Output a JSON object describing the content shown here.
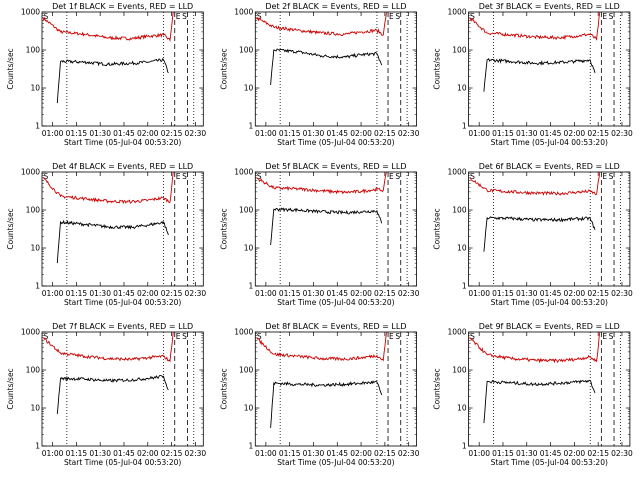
{
  "figure": {
    "background": "#ffffff",
    "colors": {
      "events": "#000000",
      "lld": "#cc0000",
      "axes": "#000000"
    }
  },
  "chart_data": [
    {
      "type": "line",
      "title": "Det 1f BLACK = Events, RED = LLD",
      "ylabel": "Counts/sec",
      "xlabel": "Start Time (05-Jul-04 00:53:20)",
      "xticks": [
        "01:00",
        "01:15",
        "01:30",
        "01:45",
        "02:00",
        "02:15",
        "02:30"
      ],
      "yticks": [
        "1",
        "10",
        "100",
        "1000"
      ],
      "yscale": "log",
      "ylim": [
        1,
        1000
      ],
      "xlim": [
        "00:53:20",
        "02:35"
      ],
      "markers": [
        {
          "label": "S",
          "time": "00:53:40"
        },
        {
          "label": "E",
          "time": "02:17"
        },
        {
          "label": "S",
          "time": "02:21"
        }
      ],
      "vlines": [
        {
          "time": "01:09",
          "style": "dotted"
        },
        {
          "time": "02:10",
          "style": "dotted"
        },
        {
          "time": "02:17",
          "style": "dashed"
        },
        {
          "time": "02:25",
          "style": "dashed"
        },
        {
          "time": "02:29",
          "style": "dotted"
        }
      ],
      "series": [
        {
          "name": "LLD",
          "color": "#cc0000",
          "x": [
            "00:54",
            "01:05",
            "01:20",
            "01:35",
            "01:50",
            "02:00",
            "02:10",
            "02:14",
            "02:16"
          ],
          "y": [
            700,
            300,
            260,
            210,
            200,
            230,
            250,
            180,
            1000
          ]
        },
        {
          "name": "Events",
          "color": "#000000",
          "x": [
            "01:03",
            "01:05",
            "01:20",
            "01:35",
            "01:50",
            "02:00",
            "02:10",
            "02:13"
          ],
          "y": [
            4,
            50,
            48,
            42,
            45,
            48,
            55,
            25
          ]
        }
      ]
    },
    {
      "type": "line",
      "title": "Det 2f BLACK = Events, RED = LLD",
      "ylabel": "Counts/sec",
      "xlabel": "Start Time (05-Jul-04 00:53:20)",
      "xticks": [
        "01:00",
        "01:15",
        "01:30",
        "01:45",
        "02:00",
        "02:15",
        "02:30"
      ],
      "yticks": [
        "1",
        "10",
        "100",
        "1000"
      ],
      "yscale": "log",
      "ylim": [
        1,
        1000
      ],
      "xlim": [
        "00:53:20",
        "02:35"
      ],
      "markers": [
        {
          "label": "S",
          "time": "00:53:40"
        },
        {
          "label": "E",
          "time": "02:17"
        },
        {
          "label": "S",
          "time": "02:21"
        }
      ],
      "vlines": [
        {
          "time": "01:09",
          "style": "dotted"
        },
        {
          "time": "02:10",
          "style": "dotted"
        },
        {
          "time": "02:17",
          "style": "dashed"
        },
        {
          "time": "02:25",
          "style": "dashed"
        },
        {
          "time": "02:29",
          "style": "dotted"
        }
      ],
      "series": [
        {
          "name": "LLD",
          "color": "#cc0000",
          "x": [
            "00:54",
            "01:05",
            "01:20",
            "01:35",
            "01:50",
            "02:00",
            "02:10",
            "02:14",
            "02:16"
          ],
          "y": [
            700,
            400,
            330,
            280,
            260,
            300,
            330,
            250,
            1000
          ]
        },
        {
          "name": "Events",
          "color": "#000000",
          "x": [
            "01:03",
            "01:05",
            "01:20",
            "01:35",
            "01:50",
            "02:00",
            "02:10",
            "02:13"
          ],
          "y": [
            12,
            100,
            90,
            70,
            65,
            75,
            80,
            40
          ]
        }
      ]
    },
    {
      "type": "line",
      "title": "Det 3f BLACK = Events, RED = LLD",
      "ylabel": "Counts/sec",
      "xlabel": "Start Time (05-Jul-04 00:53:20)",
      "xticks": [
        "01:00",
        "01:15",
        "01:30",
        "01:45",
        "02:00",
        "02:15",
        "02:30"
      ],
      "yticks": [
        "1",
        "10",
        "100",
        "1000"
      ],
      "yscale": "log",
      "ylim": [
        1,
        1000
      ],
      "xlim": [
        "00:53:20",
        "02:35"
      ],
      "markers": [
        {
          "label": "S",
          "time": "00:53:40"
        },
        {
          "label": "E",
          "time": "02:17"
        },
        {
          "label": "S",
          "time": "02:21"
        }
      ],
      "vlines": [
        {
          "time": "01:09",
          "style": "dotted"
        },
        {
          "time": "02:10",
          "style": "dotted"
        },
        {
          "time": "02:17",
          "style": "dashed"
        },
        {
          "time": "02:25",
          "style": "dashed"
        },
        {
          "time": "02:29",
          "style": "dotted"
        }
      ],
      "series": [
        {
          "name": "LLD",
          "color": "#cc0000",
          "x": [
            "00:54",
            "01:05",
            "01:20",
            "01:35",
            "01:50",
            "02:00",
            "02:10",
            "02:14",
            "02:16"
          ],
          "y": [
            700,
            280,
            250,
            220,
            210,
            230,
            260,
            190,
            1000
          ]
        },
        {
          "name": "Events",
          "color": "#000000",
          "x": [
            "01:03",
            "01:05",
            "01:20",
            "01:35",
            "01:50",
            "02:00",
            "02:10",
            "02:13"
          ],
          "y": [
            8,
            55,
            50,
            45,
            47,
            50,
            55,
            25
          ]
        }
      ]
    },
    {
      "type": "line",
      "title": "Det 4f BLACK = Events, RED = LLD",
      "ylabel": "Counts/sec",
      "xlabel": "Start Time (05-Jul-04 00:53:20)",
      "xticks": [
        "01:00",
        "01:15",
        "01:30",
        "01:45",
        "02:00",
        "02:15",
        "02:30"
      ],
      "yticks": [
        "1",
        "10",
        "100",
        "1000"
      ],
      "yscale": "log",
      "ylim": [
        1,
        1000
      ],
      "xlim": [
        "00:53:20",
        "02:35"
      ],
      "markers": [
        {
          "label": "S",
          "time": "00:53:40"
        },
        {
          "label": "E",
          "time": "02:17"
        },
        {
          "label": "S",
          "time": "02:21"
        }
      ],
      "vlines": [
        {
          "time": "01:09",
          "style": "dotted"
        },
        {
          "time": "02:10",
          "style": "dotted"
        },
        {
          "time": "02:17",
          "style": "dashed"
        },
        {
          "time": "02:25",
          "style": "dashed"
        },
        {
          "time": "02:29",
          "style": "dotted"
        }
      ],
      "series": [
        {
          "name": "LLD",
          "color": "#cc0000",
          "x": [
            "00:54",
            "01:05",
            "01:20",
            "01:35",
            "01:50",
            "02:00",
            "02:10",
            "02:14",
            "02:16"
          ],
          "y": [
            700,
            230,
            200,
            170,
            165,
            180,
            210,
            160,
            1000
          ]
        },
        {
          "name": "Events",
          "color": "#000000",
          "x": [
            "01:03",
            "01:05",
            "01:20",
            "01:35",
            "01:50",
            "02:00",
            "02:10",
            "02:13"
          ],
          "y": [
            4,
            48,
            42,
            36,
            35,
            40,
            48,
            22
          ]
        }
      ]
    },
    {
      "type": "line",
      "title": "Det 5f BLACK = Events, RED = LLD",
      "ylabel": "Counts/sec",
      "xlabel": "Start Time (05-Jul-04 00:53:20)",
      "xticks": [
        "01:00",
        "01:15",
        "01:30",
        "01:45",
        "02:00",
        "02:15",
        "02:30"
      ],
      "yticks": [
        "1",
        "10",
        "100",
        "1000"
      ],
      "yscale": "log",
      "ylim": [
        1,
        1000
      ],
      "xlim": [
        "00:53:20",
        "02:35"
      ],
      "markers": [
        {
          "label": "S",
          "time": "00:53:40"
        },
        {
          "label": "E",
          "time": "02:17"
        },
        {
          "label": "S",
          "time": "02:21"
        }
      ],
      "vlines": [
        {
          "time": "01:09",
          "style": "dotted"
        },
        {
          "time": "02:10",
          "style": "dotted"
        },
        {
          "time": "02:17",
          "style": "dashed"
        },
        {
          "time": "02:25",
          "style": "dashed"
        },
        {
          "time": "02:29",
          "style": "dotted"
        }
      ],
      "series": [
        {
          "name": "LLD",
          "color": "#cc0000",
          "x": [
            "00:54",
            "01:05",
            "01:20",
            "01:35",
            "01:50",
            "02:00",
            "02:10",
            "02:14",
            "02:16"
          ],
          "y": [
            700,
            380,
            360,
            320,
            290,
            310,
            350,
            330,
            1000
          ]
        },
        {
          "name": "Events",
          "color": "#000000",
          "x": [
            "01:03",
            "01:05",
            "01:20",
            "01:35",
            "01:50",
            "02:00",
            "02:10",
            "02:13"
          ],
          "y": [
            12,
            105,
            100,
            90,
            85,
            90,
            95,
            45
          ]
        }
      ]
    },
    {
      "type": "line",
      "title": "Det 6f BLACK = Events, RED = LLD",
      "ylabel": "Counts/sec",
      "xlabel": "Start Time (05-Jul-04 00:53:20)",
      "xticks": [
        "01:00",
        "01:15",
        "01:30",
        "01:45",
        "02:00",
        "02:15",
        "02:30"
      ],
      "yticks": [
        "1",
        "10",
        "100",
        "1000"
      ],
      "yscale": "log",
      "ylim": [
        1,
        1000
      ],
      "xlim": [
        "00:53:20",
        "02:35"
      ],
      "markers": [
        {
          "label": "S",
          "time": "00:53:40"
        },
        {
          "label": "E",
          "time": "02:17"
        },
        {
          "label": "S",
          "time": "02:21"
        }
      ],
      "vlines": [
        {
          "time": "01:09",
          "style": "dotted"
        },
        {
          "time": "02:10",
          "style": "dotted"
        },
        {
          "time": "02:17",
          "style": "dashed"
        },
        {
          "time": "02:25",
          "style": "dashed"
        },
        {
          "time": "02:29",
          "style": "dotted"
        }
      ],
      "series": [
        {
          "name": "LLD",
          "color": "#cc0000",
          "x": [
            "00:54",
            "01:05",
            "01:20",
            "01:35",
            "01:50",
            "02:00",
            "02:10",
            "02:14",
            "02:16"
          ],
          "y": [
            700,
            330,
            300,
            280,
            270,
            290,
            310,
            260,
            1000
          ]
        },
        {
          "name": "Events",
          "color": "#000000",
          "x": [
            "01:03",
            "01:05",
            "01:20",
            "01:35",
            "01:50",
            "02:00",
            "02:10",
            "02:13"
          ],
          "y": [
            8,
            62,
            60,
            55,
            55,
            58,
            60,
            30
          ]
        }
      ]
    },
    {
      "type": "line",
      "title": "Det 7f BLACK = Events, RED = LLD",
      "ylabel": "Counts/sec",
      "xlabel": "Start Time (05-Jul-04 00:53:20)",
      "xticks": [
        "01:00",
        "01:15",
        "01:30",
        "01:45",
        "02:00",
        "02:15",
        "02:30"
      ],
      "yticks": [
        "1",
        "10",
        "100",
        "1000"
      ],
      "yscale": "log",
      "ylim": [
        1,
        1000
      ],
      "xlim": [
        "00:53:20",
        "02:35"
      ],
      "markers": [
        {
          "label": "S",
          "time": "00:53:40"
        },
        {
          "label": "E",
          "time": "02:17"
        },
        {
          "label": "S",
          "time": "02:21"
        }
      ],
      "vlines": [
        {
          "time": "01:09",
          "style": "dotted"
        },
        {
          "time": "02:10",
          "style": "dotted"
        },
        {
          "time": "02:17",
          "style": "dashed"
        },
        {
          "time": "02:25",
          "style": "dashed"
        },
        {
          "time": "02:29",
          "style": "dotted"
        }
      ],
      "series": [
        {
          "name": "LLD",
          "color": "#cc0000",
          "x": [
            "00:54",
            "01:05",
            "01:20",
            "01:35",
            "01:50",
            "02:00",
            "02:10",
            "02:14",
            "02:16"
          ],
          "y": [
            700,
            280,
            230,
            200,
            190,
            210,
            230,
            170,
            1000
          ]
        },
        {
          "name": "Events",
          "color": "#000000",
          "x": [
            "01:03",
            "01:05",
            "01:20",
            "01:35",
            "01:50",
            "02:00",
            "02:10",
            "02:13"
          ],
          "y": [
            7,
            60,
            58,
            52,
            55,
            60,
            68,
            30
          ]
        }
      ]
    },
    {
      "type": "line",
      "title": "Det 8f BLACK = Events, RED = LLD",
      "ylabel": "Counts/sec",
      "xlabel": "Start Time (05-Jul-04 00:53:20)",
      "xticks": [
        "01:00",
        "01:15",
        "01:30",
        "01:45",
        "02:00",
        "02:15",
        "02:30"
      ],
      "yticks": [
        "1",
        "10",
        "100",
        "1000"
      ],
      "yscale": "log",
      "ylim": [
        1,
        1000
      ],
      "xlim": [
        "00:53:20",
        "02:35"
      ],
      "markers": [
        {
          "label": "S",
          "time": "00:53:40"
        },
        {
          "label": "E",
          "time": "02:17"
        },
        {
          "label": "S",
          "time": "02:21"
        }
      ],
      "vlines": [
        {
          "time": "01:09",
          "style": "dotted"
        },
        {
          "time": "02:10",
          "style": "dotted"
        },
        {
          "time": "02:17",
          "style": "dashed"
        },
        {
          "time": "02:25",
          "style": "dashed"
        },
        {
          "time": "02:29",
          "style": "dotted"
        }
      ],
      "series": [
        {
          "name": "LLD",
          "color": "#cc0000",
          "x": [
            "00:54",
            "01:05",
            "01:20",
            "01:35",
            "01:50",
            "02:00",
            "02:10",
            "02:14",
            "02:16"
          ],
          "y": [
            700,
            260,
            230,
            200,
            195,
            210,
            240,
            180,
            1000
          ]
        },
        {
          "name": "Events",
          "color": "#000000",
          "x": [
            "01:03",
            "01:05",
            "01:20",
            "01:35",
            "01:50",
            "02:00",
            "02:10",
            "02:13"
          ],
          "y": [
            3,
            45,
            42,
            40,
            42,
            45,
            48,
            22
          ]
        }
      ]
    },
    {
      "type": "line",
      "title": "Det 9f BLACK = Events, RED = LLD",
      "ylabel": "Counts/sec",
      "xlabel": "Start Time (05-Jul-04 00:53:20)",
      "xticks": [
        "01:00",
        "01:15",
        "01:30",
        "01:45",
        "02:00",
        "02:15",
        "02:30"
      ],
      "yticks": [
        "1",
        "10",
        "100",
        "1000"
      ],
      "yscale": "log",
      "ylim": [
        1,
        1000
      ],
      "xlim": [
        "00:53:20",
        "02:35"
      ],
      "markers": [
        {
          "label": "S",
          "time": "00:53:40"
        },
        {
          "label": "E",
          "time": "02:17"
        },
        {
          "label": "S",
          "time": "02:21"
        }
      ],
      "vlines": [
        {
          "time": "01:09",
          "style": "dotted"
        },
        {
          "time": "02:10",
          "style": "dotted"
        },
        {
          "time": "02:17",
          "style": "dashed"
        },
        {
          "time": "02:25",
          "style": "dashed"
        },
        {
          "time": "02:29",
          "style": "dotted"
        }
      ],
      "series": [
        {
          "name": "LLD",
          "color": "#cc0000",
          "x": [
            "00:54",
            "01:05",
            "01:20",
            "01:35",
            "01:50",
            "02:00",
            "02:10",
            "02:14",
            "02:16"
          ],
          "y": [
            700,
            250,
            200,
            180,
            175,
            190,
            220,
            170,
            1000
          ]
        },
        {
          "name": "Events",
          "color": "#000000",
          "x": [
            "01:03",
            "01:05",
            "01:20",
            "01:35",
            "01:50",
            "02:00",
            "02:10",
            "02:13"
          ],
          "y": [
            4,
            50,
            46,
            42,
            45,
            48,
            52,
            25
          ]
        }
      ]
    }
  ]
}
